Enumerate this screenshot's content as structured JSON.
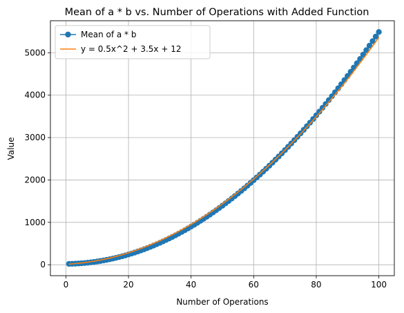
{
  "chart_data": {
    "type": "line",
    "title": "Mean of a * b vs. Number of Operations with Added Function",
    "xlabel": "Number of Operations",
    "ylabel": "Value",
    "xlim": [
      -4.95,
      104.95
    ],
    "ylim": [
      -258,
      5756
    ],
    "x_ticks": [
      0,
      20,
      40,
      60,
      80,
      100
    ],
    "y_ticks": [
      0,
      1000,
      2000,
      3000,
      4000,
      5000
    ],
    "grid": true,
    "legend_position": "upper-left",
    "x_range": [
      1,
      100
    ],
    "series": [
      {
        "name": "Mean of a * b",
        "kind": "line-with-markers",
        "color": "#1f77b4",
        "formula": "0.545x^2 + 0.2x + 20",
        "coef": [
          0.545,
          0.2,
          20
        ]
      },
      {
        "name": "y = 0.5x^2 + 3.5x + 12",
        "kind": "line",
        "color": "#ff7f0e",
        "formula": "0.5x^2 + 3.5x + 12",
        "coef": [
          0.5,
          3.5,
          12
        ]
      }
    ]
  }
}
